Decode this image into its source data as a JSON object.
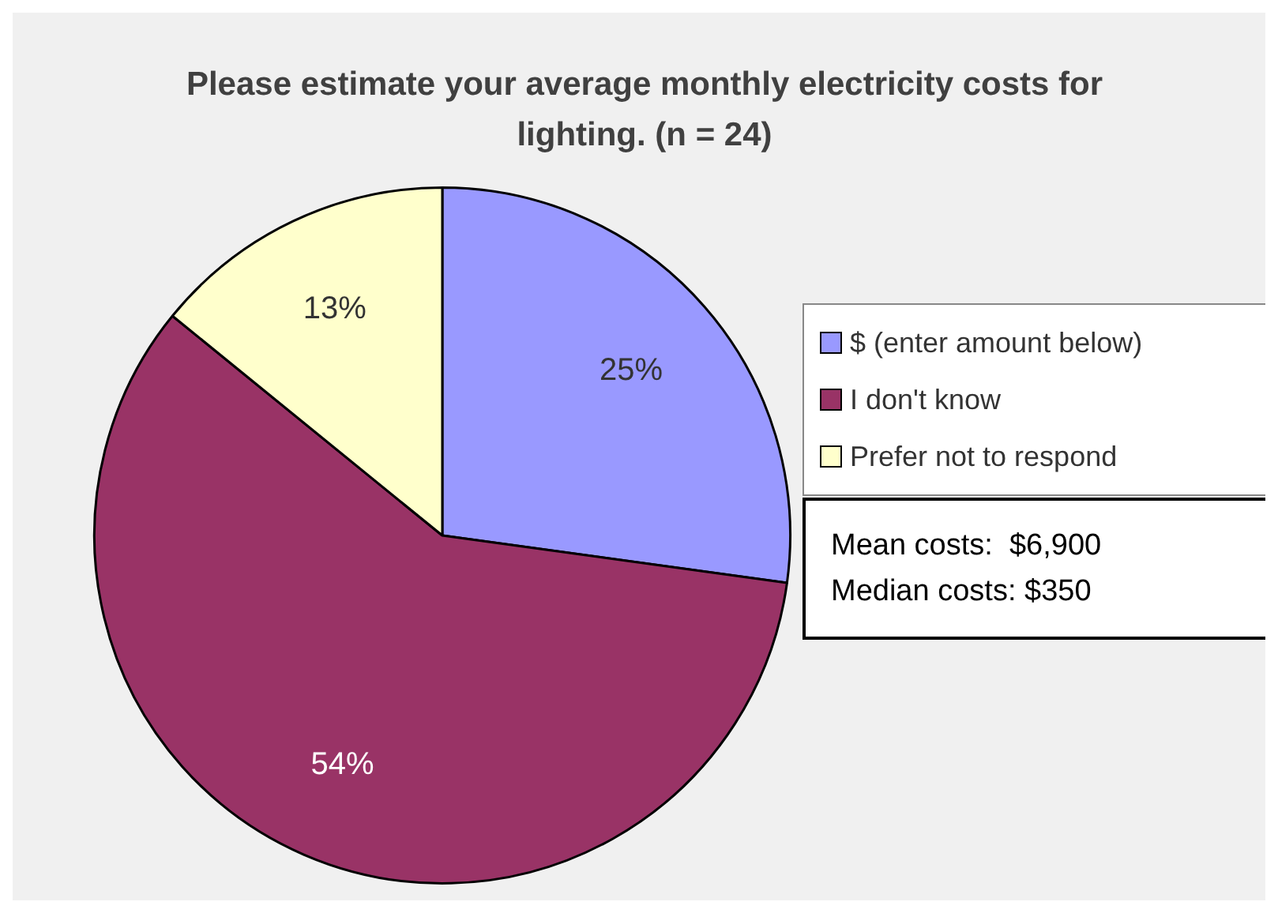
{
  "chart_data": {
    "type": "pie",
    "title": "Please estimate your average monthly electricity costs for lighting. (n = 24)",
    "categories": [
      "$ (enter amount below)",
      "I don't know",
      "Prefer not to respond"
    ],
    "values": [
      25,
      54,
      13
    ],
    "value_labels": [
      "25%",
      "54%",
      "13%"
    ],
    "colors": [
      "#9999ff",
      "#993366",
      "#ffffcc"
    ],
    "legend": "right",
    "annotations": [
      "Mean costs:  $6,900",
      "Median costs: $350"
    ]
  }
}
